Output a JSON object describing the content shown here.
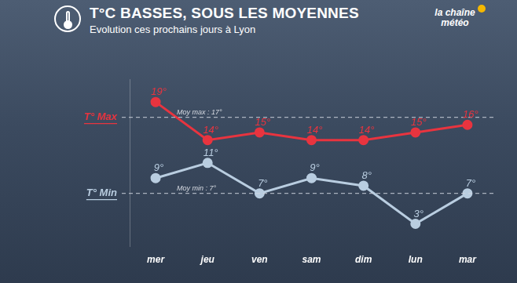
{
  "chart_data": {
    "type": "line",
    "title": "T°C BASSES, SOUS LES MOYENNES",
    "subtitle": "Evolution ces prochains jours à Lyon",
    "logo": "la chaîne météo",
    "categories": [
      "mer",
      "jeu",
      "ven",
      "sam",
      "dim",
      "lun",
      "mar"
    ],
    "series": [
      {
        "name": "T° Max",
        "color": "#e8343f",
        "marker": "circle",
        "values": [
          19,
          14,
          15,
          14,
          14,
          15,
          16
        ],
        "value_labels": [
          "19°",
          "14°",
          "15°",
          "14°",
          "14°",
          "15°",
          "16°"
        ]
      },
      {
        "name": "T° Min",
        "color": "#b9cde0",
        "marker": "circle",
        "values": [
          9,
          11,
          7,
          9,
          8,
          3,
          7
        ],
        "value_labels": [
          "9°",
          "11°",
          "7°",
          "9°",
          "8°",
          "3°",
          "7°"
        ]
      }
    ],
    "references": [
      {
        "value": 17,
        "label": "Moy max : 17°"
      },
      {
        "value": 7,
        "label": "Moy min : 7°"
      }
    ],
    "ylim": [
      0,
      22
    ],
    "grid": false,
    "legend": "left",
    "data_labels": true,
    "tick_labels": "x"
  }
}
